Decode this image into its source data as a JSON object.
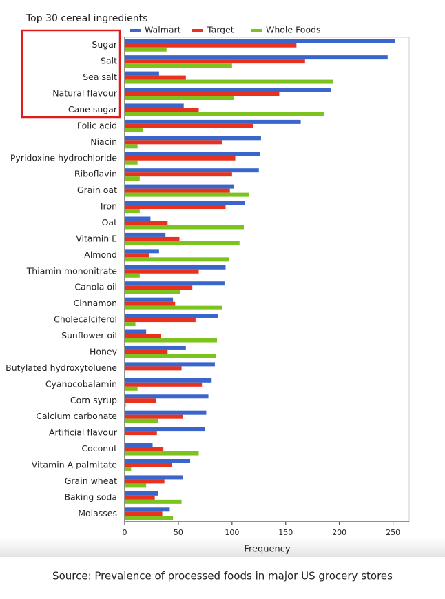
{
  "chart_data": {
    "type": "bar",
    "orientation": "horizontal",
    "title": "Top 30 cereal ingredients",
    "x_label": "Frequency",
    "source": "Source: Prevalence of processed foods in major US grocery stores",
    "categories": [
      "Sugar",
      "Salt",
      "Sea salt",
      "Natural flavour",
      "Cane sugar",
      "Folic acid",
      "Niacin",
      "Pyridoxine hydrochloride",
      "Riboflavin",
      "Grain oat",
      "Iron",
      "Oat",
      "Vitamin E",
      "Almond",
      "Thiamin mononitrate",
      "Canola oil",
      "Cinnamon",
      "Cholecalciferol",
      "Sunflower oil",
      "Honey",
      "Butylated hydroxytoluene",
      "Cyanocobalamin",
      "Corn syrup",
      "Calcium carbonate",
      "Artificial flavour",
      "Coconut",
      "Vitamin A palmitate",
      "Grain wheat",
      "Baking soda",
      "Molasses"
    ],
    "series": [
      {
        "name": "Walmart",
        "color": "#3a66cc",
        "values": [
          252,
          245,
          32,
          192,
          55,
          164,
          127,
          126,
          125,
          102,
          112,
          24,
          38,
          32,
          94,
          93,
          45,
          87,
          20,
          57,
          84,
          81,
          78,
          76,
          75,
          26,
          61,
          54,
          31,
          42
        ]
      },
      {
        "name": "Target",
        "color": "#e8321e",
        "values": [
          160,
          168,
          57,
          144,
          69,
          120,
          91,
          103,
          100,
          98,
          94,
          40,
          51,
          23,
          69,
          63,
          47,
          66,
          34,
          40,
          53,
          72,
          29,
          54,
          30,
          36,
          44,
          37,
          28,
          35
        ]
      },
      {
        "name": "Whole Foods",
        "color": "#7dc31e",
        "values": [
          39,
          100,
          194,
          102,
          186,
          17,
          12,
          12,
          14,
          116,
          14,
          111,
          107,
          97,
          14,
          52,
          91,
          10,
          86,
          85,
          0,
          12,
          1,
          31,
          0,
          69,
          6,
          20,
          53,
          45
        ]
      }
    ],
    "xlim": [
      0,
      265
    ],
    "xticks": [
      0,
      50,
      100,
      150,
      200,
      250
    ],
    "legend": "top"
  }
}
